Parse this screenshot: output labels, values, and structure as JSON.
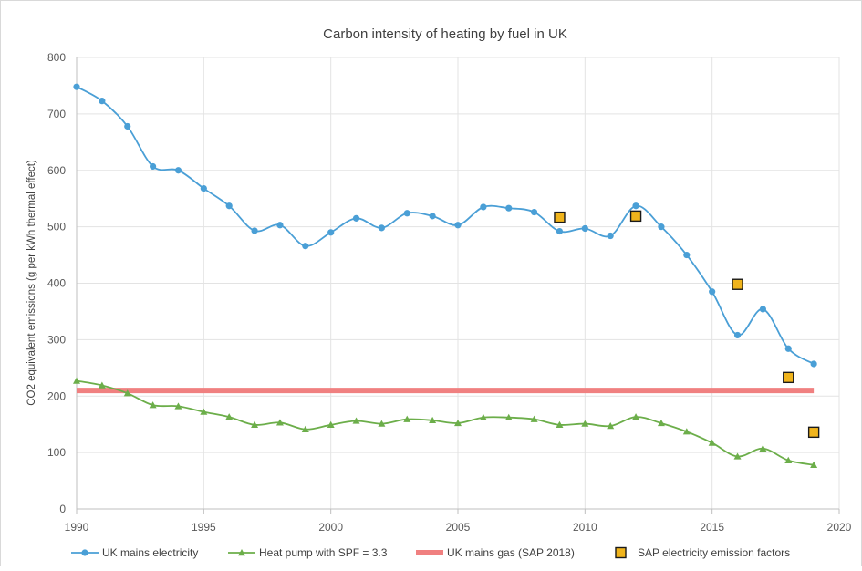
{
  "chart_data": {
    "type": "line",
    "title": "Carbon intensity of heating by fuel in UK",
    "xlabel": "",
    "ylabel": "CO2 equivalent emissions (g per kWh thermal effect)",
    "xlim": [
      1990,
      2020
    ],
    "ylim": [
      0,
      800
    ],
    "x_ticks": [
      1990,
      1995,
      2000,
      2005,
      2010,
      2015,
      2020
    ],
    "y_ticks": [
      0,
      100,
      200,
      300,
      400,
      500,
      600,
      700,
      800
    ],
    "grid": true,
    "legend_position": "bottom",
    "series": [
      {
        "name": "UK mains electricity",
        "style": "line-circle",
        "color": "#4a9fd6",
        "x": [
          1990,
          1991,
          1992,
          1993,
          1994,
          1995,
          1996,
          1997,
          1998,
          1999,
          2000,
          2001,
          2002,
          2003,
          2004,
          2005,
          2006,
          2007,
          2008,
          2009,
          2010,
          2011,
          2012,
          2013,
          2014,
          2015,
          2016,
          2017,
          2018,
          2019
        ],
        "y": [
          748,
          723,
          678,
          607,
          600,
          568,
          537,
          493,
          503,
          466,
          490,
          515,
          498,
          524,
          519,
          503,
          535,
          533,
          526,
          492,
          497,
          484,
          537,
          500,
          450,
          385,
          308,
          354,
          284,
          257
        ]
      },
      {
        "name": "Heat pump with SPF = 3.3",
        "style": "line-triangle",
        "color": "#6cae4a",
        "x": [
          1990,
          1991,
          1992,
          1993,
          1994,
          1995,
          1996,
          1997,
          1998,
          1999,
          2000,
          2001,
          2002,
          2003,
          2004,
          2005,
          2006,
          2007,
          2008,
          2009,
          2010,
          2011,
          2012,
          2013,
          2014,
          2015,
          2016,
          2017,
          2018,
          2019
        ],
        "y": [
          227,
          219,
          205,
          184,
          182,
          172,
          163,
          149,
          153,
          141,
          149,
          156,
          151,
          159,
          157,
          152,
          162,
          162,
          159,
          149,
          151,
          147,
          163,
          152,
          137,
          117,
          93,
          107,
          86,
          78
        ]
      },
      {
        "name": "UK mains gas (SAP 2018)",
        "style": "thick-line",
        "color": "#f08080",
        "x": [
          1990,
          2019
        ],
        "y": [
          210,
          210
        ]
      },
      {
        "name": "SAP electricity emission factors",
        "style": "square-marker",
        "color": "#f0b41c",
        "x": [
          2009,
          2012,
          2016,
          2018,
          2019
        ],
        "y": [
          517,
          519,
          398,
          233,
          136
        ]
      }
    ]
  }
}
